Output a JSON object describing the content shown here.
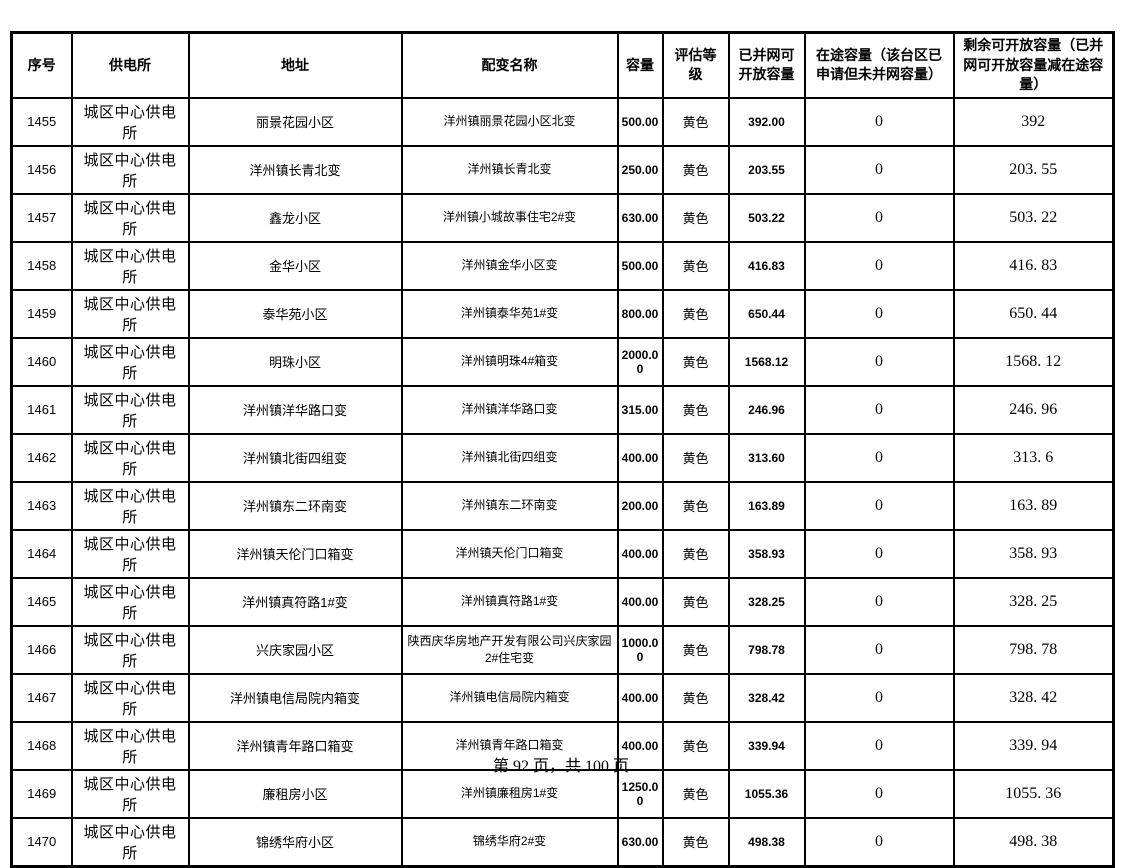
{
  "colors": {
    "background": "#ffffff",
    "border": "#000000",
    "text": "#000000"
  },
  "table": {
    "columns": [
      {
        "key": "seq",
        "label": "序号"
      },
      {
        "key": "station",
        "label": "供电所"
      },
      {
        "key": "address",
        "label": "地址"
      },
      {
        "key": "name",
        "label": "配变名称"
      },
      {
        "key": "capacity",
        "label": "容量"
      },
      {
        "key": "grade",
        "label": "评估等级"
      },
      {
        "key": "grid",
        "label": "已并网可开放容量"
      },
      {
        "key": "transit",
        "label": "在途容量（该台区已申请但未并网容量）"
      },
      {
        "key": "remain",
        "label": "剩余可开放容量（已并网可开放容量减在途容量）"
      }
    ],
    "rows": [
      [
        "1455",
        "城区中心供电所",
        "丽景花园小区",
        "洋州镇丽景花园小区北变",
        "500.00",
        "黄色",
        "392.00",
        "0",
        "392"
      ],
      [
        "1456",
        "城区中心供电所",
        "洋州镇长青北变",
        "洋州镇长青北变",
        "250.00",
        "黄色",
        "203.55",
        "0",
        "203. 55"
      ],
      [
        "1457",
        "城区中心供电所",
        "鑫龙小区",
        "洋州镇小城故事住宅2#变",
        "630.00",
        "黄色",
        "503.22",
        "0",
        "503. 22"
      ],
      [
        "1458",
        "城区中心供电所",
        "金华小区",
        "洋州镇金华小区变",
        "500.00",
        "黄色",
        "416.83",
        "0",
        "416. 83"
      ],
      [
        "1459",
        "城区中心供电所",
        "泰华苑小区",
        "洋州镇泰华苑1#变",
        "800.00",
        "黄色",
        "650.44",
        "0",
        "650. 44"
      ],
      [
        "1460",
        "城区中心供电所",
        "明珠小区",
        "洋州镇明珠4#箱变",
        "2000.00",
        "黄色",
        "1568.12",
        "0",
        "1568. 12"
      ],
      [
        "1461",
        "城区中心供电所",
        "洋州镇洋华路口变",
        "洋州镇洋华路口变",
        "315.00",
        "黄色",
        "246.96",
        "0",
        "246. 96"
      ],
      [
        "1462",
        "城区中心供电所",
        "洋州镇北街四组变",
        "洋州镇北街四组变",
        "400.00",
        "黄色",
        "313.60",
        "0",
        "313. 6"
      ],
      [
        "1463",
        "城区中心供电所",
        "洋州镇东二环南变",
        "洋州镇东二环南变",
        "200.00",
        "黄色",
        "163.89",
        "0",
        "163. 89"
      ],
      [
        "1464",
        "城区中心供电所",
        "洋州镇天伦门口箱变",
        "洋州镇天伦门口箱变",
        "400.00",
        "黄色",
        "358.93",
        "0",
        "358. 93"
      ],
      [
        "1465",
        "城区中心供电所",
        "洋州镇真符路1#变",
        "洋州镇真符路1#变",
        "400.00",
        "黄色",
        "328.25",
        "0",
        "328. 25"
      ],
      [
        "1466",
        "城区中心供电所",
        "兴庆家园小区",
        "陕西庆华房地产开发有限公司兴庆家园2#住宅变",
        "1000.00",
        "黄色",
        "798.78",
        "0",
        "798. 78"
      ],
      [
        "1467",
        "城区中心供电所",
        "洋州镇电信局院内箱变",
        "洋州镇电信局院内箱变",
        "400.00",
        "黄色",
        "328.42",
        "0",
        "328. 42"
      ],
      [
        "1468",
        "城区中心供电所",
        "洋州镇青年路口箱变",
        "洋州镇青年路口箱变",
        "400.00",
        "黄色",
        "339.94",
        "0",
        "339. 94"
      ],
      [
        "1469",
        "城区中心供电所",
        "廉租房小区",
        "洋州镇廉租房1#变",
        "1250.00",
        "黄色",
        "1055.36",
        "0",
        "1055. 36"
      ],
      [
        "1470",
        "城区中心供电所",
        "锦绣华府小区",
        "锦绣华府2#变",
        "630.00",
        "黄色",
        "498.38",
        "0",
        "498. 38"
      ]
    ]
  },
  "footer": {
    "page_label": "第 92 页，共 100 页"
  }
}
